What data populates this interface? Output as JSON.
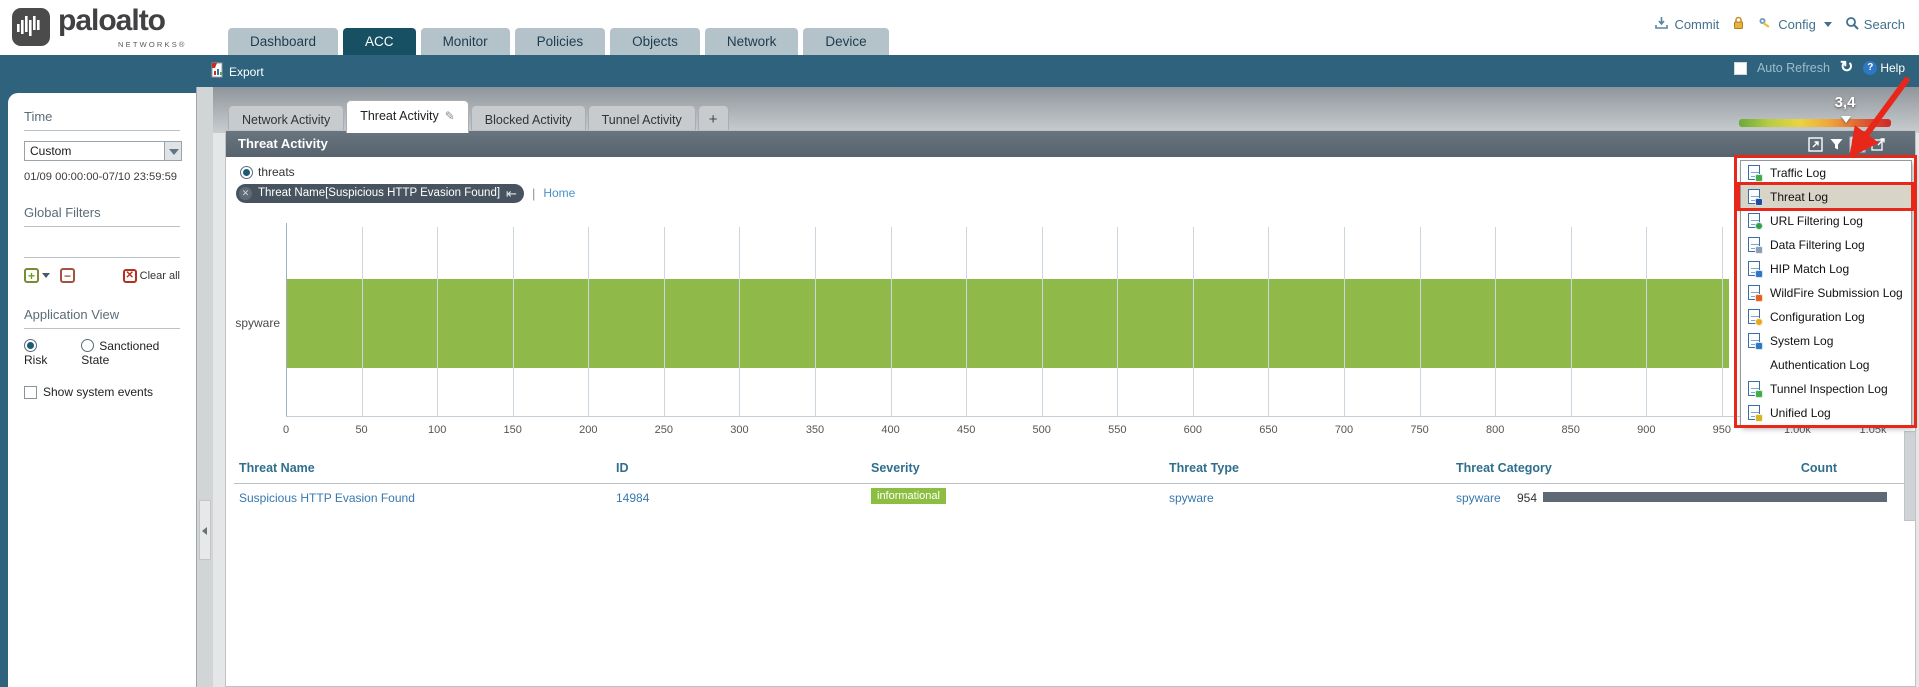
{
  "header": {
    "logo": {
      "brand": "paloalto",
      "sub": "NETWORKS®"
    },
    "nav_tabs": [
      {
        "label": "Dashboard",
        "active": false
      },
      {
        "label": "ACC",
        "active": true
      },
      {
        "label": "Monitor",
        "active": false
      },
      {
        "label": "Policies",
        "active": false
      },
      {
        "label": "Objects",
        "active": false
      },
      {
        "label": "Network",
        "active": false
      },
      {
        "label": "Device",
        "active": false
      }
    ],
    "utilities": {
      "commit": "Commit",
      "config": "Config",
      "search": "Search"
    }
  },
  "toolbar": {
    "export_label": "Export",
    "auto_refresh_label": "Auto Refresh",
    "help_label": "Help"
  },
  "sidebar": {
    "time": {
      "title": "Time",
      "selected": "Custom",
      "range": "01/09 00:00:00-07/10 23:59:59"
    },
    "global_filters": {
      "title": "Global Filters",
      "clear_all": "Clear all"
    },
    "application_view": {
      "title": "Application View",
      "options": [
        {
          "label": "Risk",
          "selected": true
        },
        {
          "label": "Sanctioned State",
          "selected": false
        }
      ],
      "show_system_events": "Show system events"
    }
  },
  "acc_tabs": [
    {
      "label": "Network Activity",
      "active": false
    },
    {
      "label": "Threat Activity",
      "active": true
    },
    {
      "label": "Blocked Activity",
      "active": false
    },
    {
      "label": "Tunnel Activity",
      "active": false
    },
    {
      "label": "+",
      "active": false
    }
  ],
  "panel": {
    "title": "Threat Activity",
    "radio_label": "threats",
    "filter_pill": "Threat Name[Suspicious HTTP Evasion Found]",
    "home_link": "Home",
    "risk_meter": {
      "value_label": "3,4"
    },
    "header_icons": [
      "maximize-icon",
      "filter-funnel-icon",
      "log-list-icon",
      "export-detail-icon"
    ]
  },
  "chart_data": {
    "type": "bar",
    "orientation": "horizontal",
    "title": "Threat Activity",
    "categories": [
      "spyware"
    ],
    "values": [
      954
    ],
    "xlim": [
      0,
      1050
    ],
    "tick_step": 50,
    "tick_labels": [
      "0",
      "50",
      "100",
      "150",
      "200",
      "250",
      "300",
      "350",
      "400",
      "450",
      "500",
      "550",
      "600",
      "650",
      "700",
      "750",
      "800",
      "850",
      "900",
      "950",
      "1.00k",
      "1.05k"
    ],
    "bar_color": "#8fba4a",
    "grid": true,
    "legend": "none"
  },
  "table": {
    "columns": [
      "Threat Name",
      "ID",
      "Severity",
      "Threat Type",
      "Threat Category",
      "Count"
    ],
    "rows": [
      {
        "threat_name": "Suspicious HTTP Evasion Found",
        "id": "14984",
        "severity": "informational",
        "threat_type": "spyware",
        "threat_category": "spyware",
        "count": "954",
        "count_value": 954,
        "count_max": 954
      }
    ],
    "severity_color": "#8cbe42"
  },
  "menu": {
    "items": [
      {
        "label": "Traffic Log",
        "icon": "traffic-log-icon",
        "highlighted": false
      },
      {
        "label": "Threat Log",
        "icon": "threat-log-icon",
        "highlighted": true
      },
      {
        "label": "URL Filtering Log",
        "icon": "url-filtering-log-icon",
        "highlighted": false
      },
      {
        "label": "Data Filtering Log",
        "icon": "data-filtering-log-icon",
        "highlighted": false
      },
      {
        "label": "HIP Match Log",
        "icon": "hip-match-log-icon",
        "highlighted": false
      },
      {
        "label": "WildFire Submission Log",
        "icon": "wildfire-submission-log-icon",
        "highlighted": false
      },
      {
        "label": "Configuration Log",
        "icon": "configuration-log-icon",
        "highlighted": false
      },
      {
        "label": "System Log",
        "icon": "system-log-icon",
        "highlighted": false
      },
      {
        "label": "Authentication Log",
        "icon": null,
        "highlighted": false
      },
      {
        "label": "Tunnel Inspection Log",
        "icon": "tunnel-inspection-log-icon",
        "highlighted": false
      },
      {
        "label": "Unified Log",
        "icon": "unified-log-icon",
        "highlighted": false
      }
    ]
  },
  "annotation": {
    "color": "#e8271b",
    "shapes": [
      "arrow-to-log-list-icon",
      "box-around-menu",
      "box-around-threat-log"
    ]
  }
}
